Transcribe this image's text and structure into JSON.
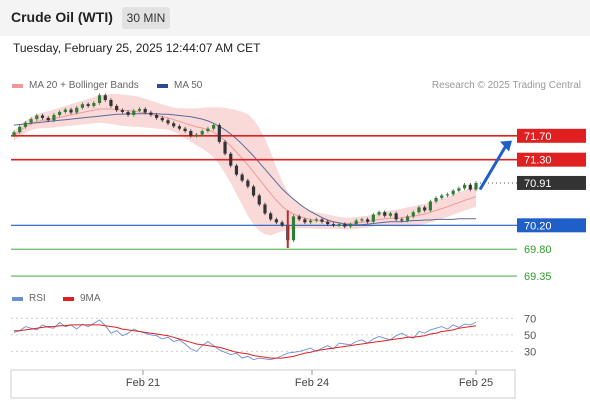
{
  "header": {
    "title": "Crude Oil (WTI)",
    "timeframe": "30 MIN",
    "datetime": "Tuesday, February 25, 2025 12:44:07 AM CET"
  },
  "legend": {
    "ma20": "MA 20 + Bollinger Bands",
    "ma50": "MA 50",
    "research": "Research © 2025 Trading Central",
    "rsi": "RSI",
    "rsi_ma": "9MA"
  },
  "colors": {
    "up": "#2e7d32",
    "down": "#333333",
    "resistance": "#e02020",
    "support": "#1f5fc7",
    "target_support": "#2e9d2e",
    "bollinger": "#f8c9c9",
    "ma50": "#5a6b9c",
    "arrow": "#1f5fc7",
    "rsi": "#6b8fd6",
    "rsi_ma": "#e02020"
  },
  "chart_data": [
    {
      "type": "line",
      "name": "price",
      "ylim": [
        69.2,
        72.3
      ],
      "x_ticks": [
        "Feb 21",
        "Feb 24",
        "Feb 25"
      ],
      "levels": [
        {
          "label": "71.70",
          "value": 71.7,
          "kind": "resistance"
        },
        {
          "label": "71.30",
          "value": 71.3,
          "kind": "resistance"
        },
        {
          "label": "70.91",
          "value": 70.91,
          "kind": "last"
        },
        {
          "label": "70.20",
          "value": 70.2,
          "kind": "pivot"
        },
        {
          "label": "69.80",
          "value": 69.8,
          "kind": "support"
        },
        {
          "label": "69.35",
          "value": 69.35,
          "kind": "support"
        }
      ],
      "close": [
        71.76,
        71.85,
        71.92,
        71.98,
        72.04,
        72.0,
        71.96,
        72.05,
        72.1,
        72.14,
        72.09,
        72.17,
        72.23,
        72.2,
        72.25,
        72.38,
        72.3,
        72.2,
        72.13,
        72.1,
        72.05,
        72.12,
        72.15,
        72.09,
        72.05,
        72.0,
        71.96,
        71.91,
        71.86,
        71.82,
        71.78,
        71.7,
        71.72,
        71.78,
        71.82,
        71.88,
        71.6,
        71.4,
        71.2,
        71.05,
        70.95,
        70.85,
        70.7,
        70.55,
        70.4,
        70.3,
        70.25,
        70.2,
        69.95,
        70.35,
        70.3,
        70.25,
        70.28,
        70.3,
        70.26,
        70.22,
        70.2,
        70.22,
        70.18,
        70.22,
        70.28,
        70.3,
        70.26,
        70.38,
        70.42,
        70.36,
        70.4,
        70.3,
        70.28,
        70.35,
        70.42,
        70.5,
        70.45,
        70.6,
        70.66,
        70.7,
        70.72,
        70.78,
        70.82,
        70.88,
        70.8,
        70.91
      ],
      "ma20": [
        71.7,
        71.78,
        71.85,
        71.9,
        71.94,
        71.96,
        71.97,
        71.99,
        72.01,
        72.03,
        72.05,
        72.07,
        72.09,
        72.11,
        72.13,
        72.15,
        72.15,
        72.15,
        72.14,
        72.13,
        72.12,
        72.11,
        72.1,
        72.08,
        72.06,
        72.04,
        72.02,
        72.0,
        71.97,
        71.94,
        71.91,
        71.88,
        71.85,
        71.83,
        71.8,
        71.76,
        71.7,
        71.62,
        71.53,
        71.43,
        71.32,
        71.21,
        71.09,
        70.97,
        70.85,
        70.73,
        70.62,
        70.52,
        70.44,
        70.39,
        70.35,
        70.32,
        70.3,
        70.28,
        70.27,
        70.26,
        70.25,
        70.24,
        70.23,
        70.23,
        70.24,
        70.25,
        70.26,
        70.28,
        70.3,
        70.31,
        70.32,
        70.32,
        70.33,
        70.34,
        70.35,
        70.37,
        70.39,
        70.42,
        70.45,
        70.48,
        70.51,
        70.55,
        70.58,
        70.62,
        70.65,
        70.68
      ],
      "bb_width": [
        0.08,
        0.09,
        0.1,
        0.11,
        0.12,
        0.13,
        0.14,
        0.15,
        0.16,
        0.17,
        0.18,
        0.19,
        0.2,
        0.21,
        0.22,
        0.23,
        0.24,
        0.25,
        0.26,
        0.26,
        0.26,
        0.26,
        0.25,
        0.24,
        0.23,
        0.22,
        0.21,
        0.2,
        0.2,
        0.22,
        0.25,
        0.28,
        0.31,
        0.34,
        0.38,
        0.42,
        0.48,
        0.55,
        0.62,
        0.7,
        0.78,
        0.85,
        0.88,
        0.86,
        0.8,
        0.7,
        0.55,
        0.42,
        0.32,
        0.25,
        0.2,
        0.17,
        0.15,
        0.14,
        0.13,
        0.12,
        0.11,
        0.1,
        0.1,
        0.1,
        0.1,
        0.1,
        0.1,
        0.1,
        0.11,
        0.12,
        0.13,
        0.14,
        0.15,
        0.16,
        0.17,
        0.17,
        0.17,
        0.17,
        0.17,
        0.17,
        0.17,
        0.17,
        0.17,
        0.17,
        0.17,
        0.17
      ],
      "ma50": [
        71.88,
        71.89,
        71.9,
        71.91,
        71.92,
        71.93,
        71.94,
        71.95,
        71.96,
        71.97,
        71.98,
        71.99,
        72.0,
        72.01,
        72.02,
        72.03,
        72.04,
        72.05,
        72.06,
        72.06,
        72.07,
        72.07,
        72.07,
        72.07,
        72.07,
        72.07,
        72.06,
        72.06,
        72.05,
        72.04,
        72.03,
        72.02,
        72.0,
        71.98,
        71.95,
        71.91,
        71.86,
        71.8,
        71.73,
        71.65,
        71.56,
        71.46,
        71.36,
        71.25,
        71.14,
        71.03,
        70.92,
        70.81,
        70.72,
        70.64,
        70.56,
        70.49,
        70.43,
        70.38,
        70.33,
        70.29,
        70.26,
        70.24,
        70.22,
        70.21,
        70.21,
        70.21,
        70.22,
        70.23,
        70.24,
        70.25,
        70.26,
        70.26,
        70.26,
        70.27,
        70.28,
        70.28,
        70.29,
        70.29,
        70.3,
        70.3,
        70.3,
        70.3,
        70.31,
        70.31,
        70.31,
        70.31
      ]
    },
    {
      "type": "line",
      "name": "RSI",
      "ylim": [
        10,
        80
      ],
      "y_ticks": [
        30,
        50,
        70
      ],
      "rsi": [
        53,
        55,
        60,
        58,
        56,
        62,
        59,
        58,
        65,
        60,
        62,
        57,
        63,
        60,
        64,
        68,
        61,
        52,
        55,
        49,
        52,
        57,
        54,
        52,
        50,
        49,
        45,
        47,
        42,
        44,
        39,
        33,
        30,
        37,
        42,
        37,
        32,
        29,
        26,
        28,
        22,
        24,
        20,
        22,
        21,
        20,
        22,
        25,
        28,
        29,
        30,
        32,
        34,
        30,
        34,
        37,
        33,
        40,
        39,
        38,
        42,
        44,
        40,
        45,
        48,
        46,
        44,
        49,
        52,
        48,
        46,
        54,
        52,
        56,
        58,
        60,
        57,
        62,
        59,
        63,
        62,
        65
      ],
      "rsi_ma": [
        55,
        55,
        56,
        57,
        58,
        59,
        60,
        60,
        61,
        61,
        62,
        62,
        62,
        62,
        62,
        62,
        61,
        60,
        59,
        57,
        56,
        55,
        54,
        53,
        52,
        51,
        50,
        49,
        47,
        45,
        43,
        41,
        39,
        38,
        37,
        36,
        35,
        33,
        31,
        29,
        28,
        27,
        25,
        24,
        23,
        22,
        22,
        22,
        23,
        24,
        26,
        28,
        29,
        31,
        32,
        33,
        34,
        35,
        36,
        37,
        38,
        39,
        40,
        41,
        42,
        43,
        44,
        45,
        46,
        47,
        47,
        48,
        49,
        51,
        52,
        54,
        55,
        56,
        58,
        59,
        60,
        61
      ]
    }
  ]
}
